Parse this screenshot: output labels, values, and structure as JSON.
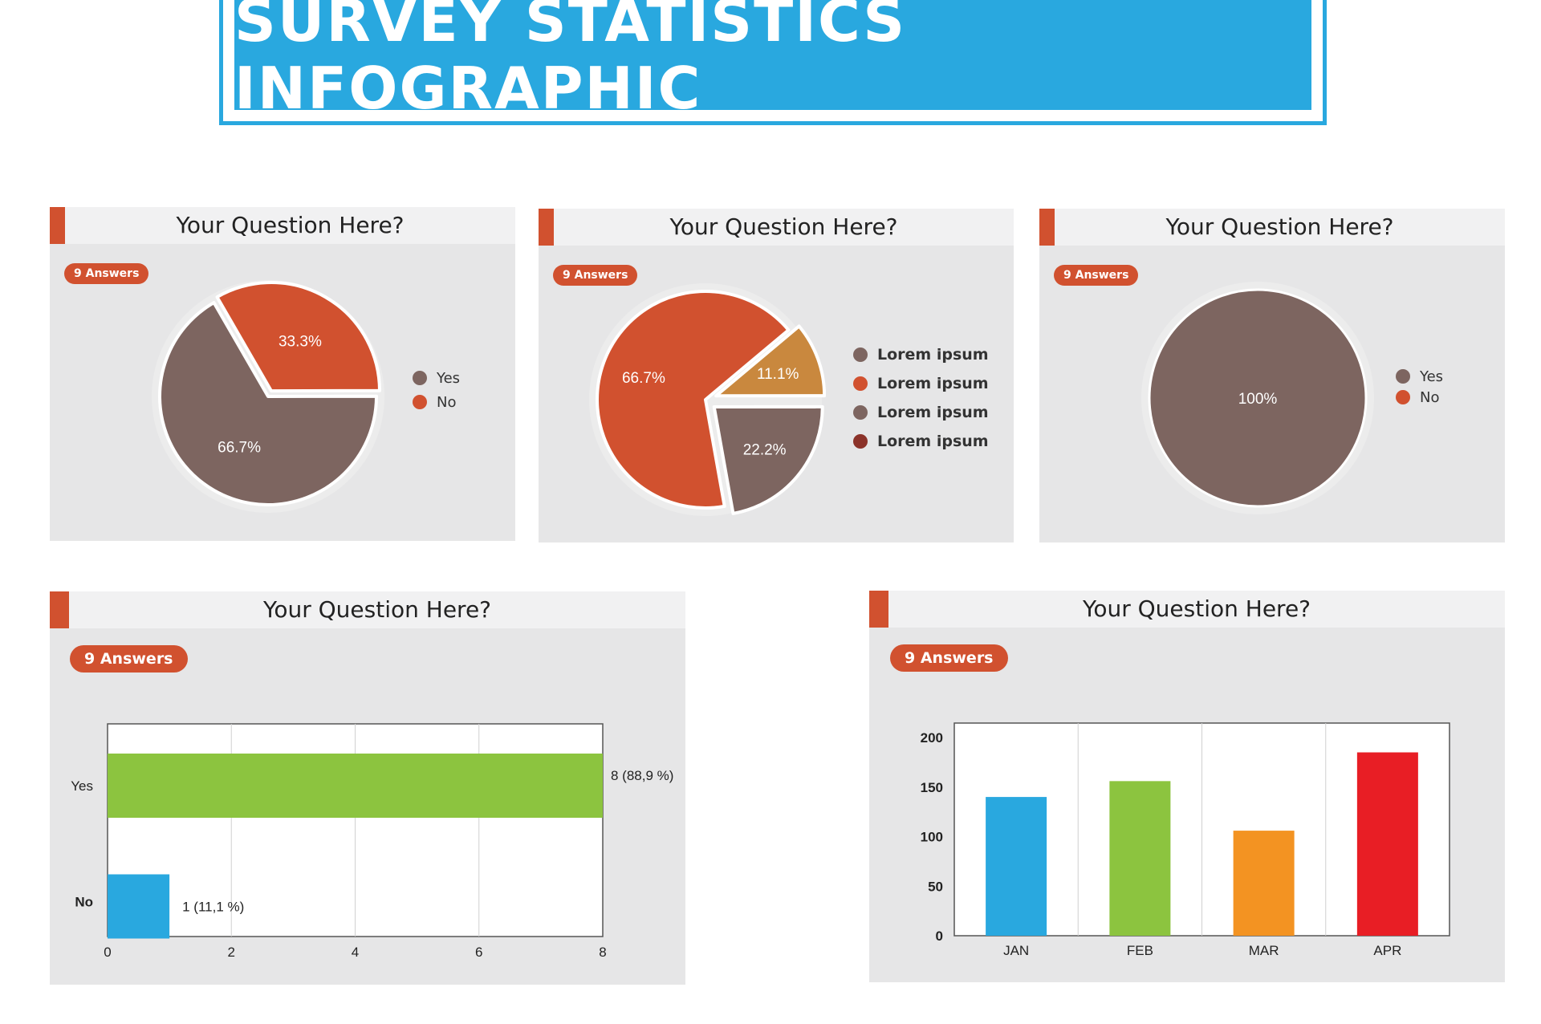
{
  "title": "SURVEY STATISTICS INFOGRAPHIC",
  "colors": {
    "accent": "#d1512f",
    "banner": "#29a8df",
    "brown": "#7d6560",
    "orange": "#d1512f",
    "gold": "#c9883e",
    "darkred": "#8b3229"
  },
  "chart_data": [
    {
      "type": "pie",
      "title": "Your Question Here?",
      "badge": "9 Answers",
      "slices": [
        {
          "label": "Yes",
          "value": 66.7,
          "display": "66.7%",
          "color": "#7d6560"
        },
        {
          "label": "No",
          "value": 33.3,
          "display": "33.3%",
          "color": "#d1512f"
        }
      ],
      "legend_position": "right"
    },
    {
      "type": "pie",
      "title": "Your Question Here?",
      "badge": "9 Answers",
      "slices": [
        {
          "label": "Lorem ipsum",
          "value": 11.1,
          "display": "11.1%",
          "color": "#c9883e"
        },
        {
          "label": "Lorem ipsum",
          "value": 22.2,
          "display": "22.2%",
          "color": "#7d6560"
        },
        {
          "label": "Lorem ipsum",
          "value": 66.7,
          "display": "66.7%",
          "color": "#d1512f"
        }
      ],
      "legend": [
        {
          "label": "Lorem ipsum",
          "color": "#7d6560"
        },
        {
          "label": "Lorem ipsum",
          "color": "#d1512f"
        },
        {
          "label": "Lorem ipsum",
          "color": "#7d6560"
        },
        {
          "label": "Lorem ipsum",
          "color": "#8b3229"
        }
      ],
      "legend_position": "right"
    },
    {
      "type": "pie",
      "title": "Your Question Here?",
      "badge": "9 Answers",
      "slices": [
        {
          "label": "Yes",
          "value": 100,
          "display": "100%",
          "color": "#7d6560"
        },
        {
          "label": "No",
          "value": 0,
          "display": "",
          "color": "#d1512f"
        }
      ],
      "legend_position": "right"
    },
    {
      "type": "bar",
      "orientation": "horizontal",
      "title": "Your Question Here?",
      "badge": "9 Answers",
      "categories": [
        "Yes",
        "No"
      ],
      "values": [
        8,
        1
      ],
      "value_labels": [
        "8 (88,9 %)",
        "1 (11,1 %)"
      ],
      "colors": [
        "#8cc43f",
        "#29a8df"
      ],
      "xlim": [
        0,
        8
      ],
      "xticks": [
        "0",
        "2",
        "4",
        "6",
        "8"
      ],
      "grid": true
    },
    {
      "type": "bar",
      "title": "Your Question Here?",
      "badge": "9 Answers",
      "categories": [
        "JAN",
        "FEB",
        "MAR",
        "APR"
      ],
      "values": [
        140,
        156,
        106,
        185
      ],
      "colors": [
        "#29a8df",
        "#8cc43f",
        "#f39322",
        "#e81e25"
      ],
      "ylim": [
        0,
        200
      ],
      "yticks": [
        "200",
        "150",
        "100",
        "50",
        "0"
      ],
      "grid": true
    }
  ]
}
